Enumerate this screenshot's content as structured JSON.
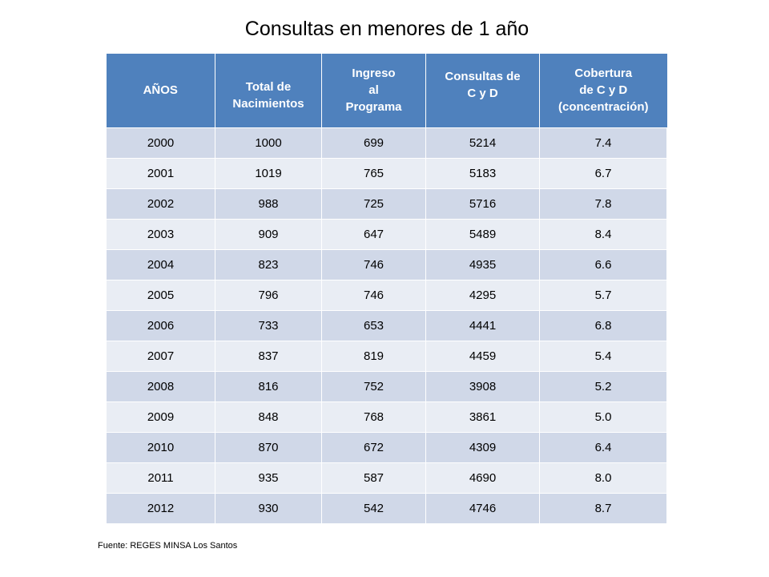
{
  "chart_data": {
    "type": "table",
    "title": "Consultas en menores de 1 año",
    "columns": [
      "AÑOS",
      "Total de\nNacimientos",
      "Ingreso\nal\nPrograma",
      "Consultas de\nC y D",
      "Cobertura\nde C  y  D\n(concentración)"
    ],
    "rows": [
      [
        "2000",
        "1000",
        "699",
        "5214",
        "7.4"
      ],
      [
        "2001",
        "1019",
        "765",
        "5183",
        "6.7"
      ],
      [
        "2002",
        "988",
        "725",
        "5716",
        "7.8"
      ],
      [
        "2003",
        "909",
        "647",
        "5489",
        "8.4"
      ],
      [
        "2004",
        "823",
        "746",
        "4935",
        "6.6"
      ],
      [
        "2005",
        "796",
        "746",
        "4295",
        "5.7"
      ],
      [
        "2006",
        "733",
        "653",
        "4441",
        "6.8"
      ],
      [
        "2007",
        "837",
        "819",
        "4459",
        "5.4"
      ],
      [
        "2008",
        "816",
        "752",
        "3908",
        "5.2"
      ],
      [
        "2009",
        "848",
        "768",
        "3861",
        "5.0"
      ],
      [
        "2010",
        "870",
        "672",
        "4309",
        "6.4"
      ],
      [
        "2011",
        "935",
        "587",
        "4690",
        "8.0"
      ],
      [
        "2012",
        "930",
        "542",
        "4746",
        "8.7"
      ]
    ],
    "source": "Fuente: REGES MINSA Los Santos"
  },
  "colors": {
    "header_bg": "#4f81bd",
    "header_text": "#ffffff",
    "row_band_dark": "#d0d8e8",
    "row_band_light": "#e9edf4"
  }
}
